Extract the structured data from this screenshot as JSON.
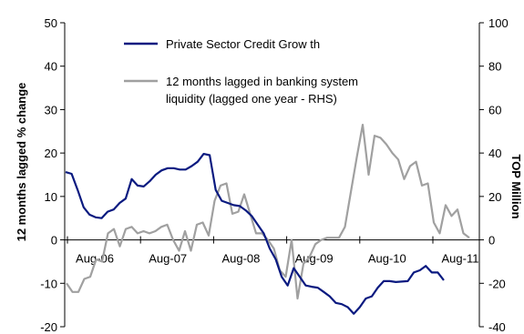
{
  "chart_data": {
    "type": "line",
    "title": "",
    "ylabel": "12 months lagged % change",
    "y2label": "TOP Million",
    "ylim": [
      -20,
      50
    ],
    "y2lim": [
      -40,
      100
    ],
    "yticks": [
      "50",
      "40",
      "30",
      "20",
      "10",
      "0",
      "-10",
      "-20"
    ],
    "y2ticks": [
      "100",
      "80",
      "60",
      "40",
      "20",
      "0",
      "-20",
      "-40"
    ],
    "xtick_labels": [
      "Aug-06",
      "Aug-07",
      "Aug-08",
      "Aug-09",
      "Aug-10",
      "Aug-11"
    ],
    "legend_position": "top-center",
    "series": [
      {
        "name": "Private Sector Credit Grow th",
        "axis": "left",
        "color": "#0a1a80",
        "values": [
          15.6,
          15.2,
          11.5,
          7.5,
          5.8,
          5.2,
          5.0,
          6.5,
          7.0,
          8.5,
          9.5,
          14.0,
          12.5,
          12.3,
          13.5,
          15.0,
          16.0,
          16.5,
          16.5,
          16.2,
          16.2,
          17.0,
          18.0,
          19.8,
          19.5,
          11.5,
          9.0,
          8.5,
          8.0,
          7.8,
          6.8,
          5.5,
          3.5,
          1.5,
          -2.0,
          -4.5,
          -8.5,
          -10.5,
          -6.5,
          -8.5,
          -10.5,
          -10.8,
          -11.0,
          -12.0,
          -13.0,
          -14.5,
          -14.8,
          -15.5,
          -17.0,
          -15.5,
          -13.5,
          -13.0,
          -11.0,
          -9.5,
          -9.5,
          -9.7,
          -9.6,
          -9.5,
          -7.5,
          -7.0,
          -6.0,
          -7.5,
          -7.5,
          -9.3
        ]
      },
      {
        "name": "12 months lagged in banking system liquidity (lagged one year - RHS)",
        "axis": "right",
        "color": "#a0a0a0",
        "values": [
          -20,
          -24,
          -24,
          -18,
          -17,
          -9,
          -10,
          3,
          5,
          -3,
          5,
          6,
          3,
          4,
          3,
          4,
          6,
          7,
          0,
          -5,
          4,
          -5,
          7,
          8,
          2,
          18,
          25,
          26,
          12,
          13,
          21,
          12,
          3,
          3,
          0,
          -4,
          -14,
          -17,
          0,
          -27,
          -11,
          -8,
          -2,
          0,
          1,
          1,
          1,
          6,
          22,
          38,
          53,
          30,
          48,
          47,
          44,
          40,
          37,
          28,
          34,
          36,
          25,
          26,
          8,
          3,
          16,
          11,
          14,
          3,
          1
        ]
      }
    ]
  }
}
